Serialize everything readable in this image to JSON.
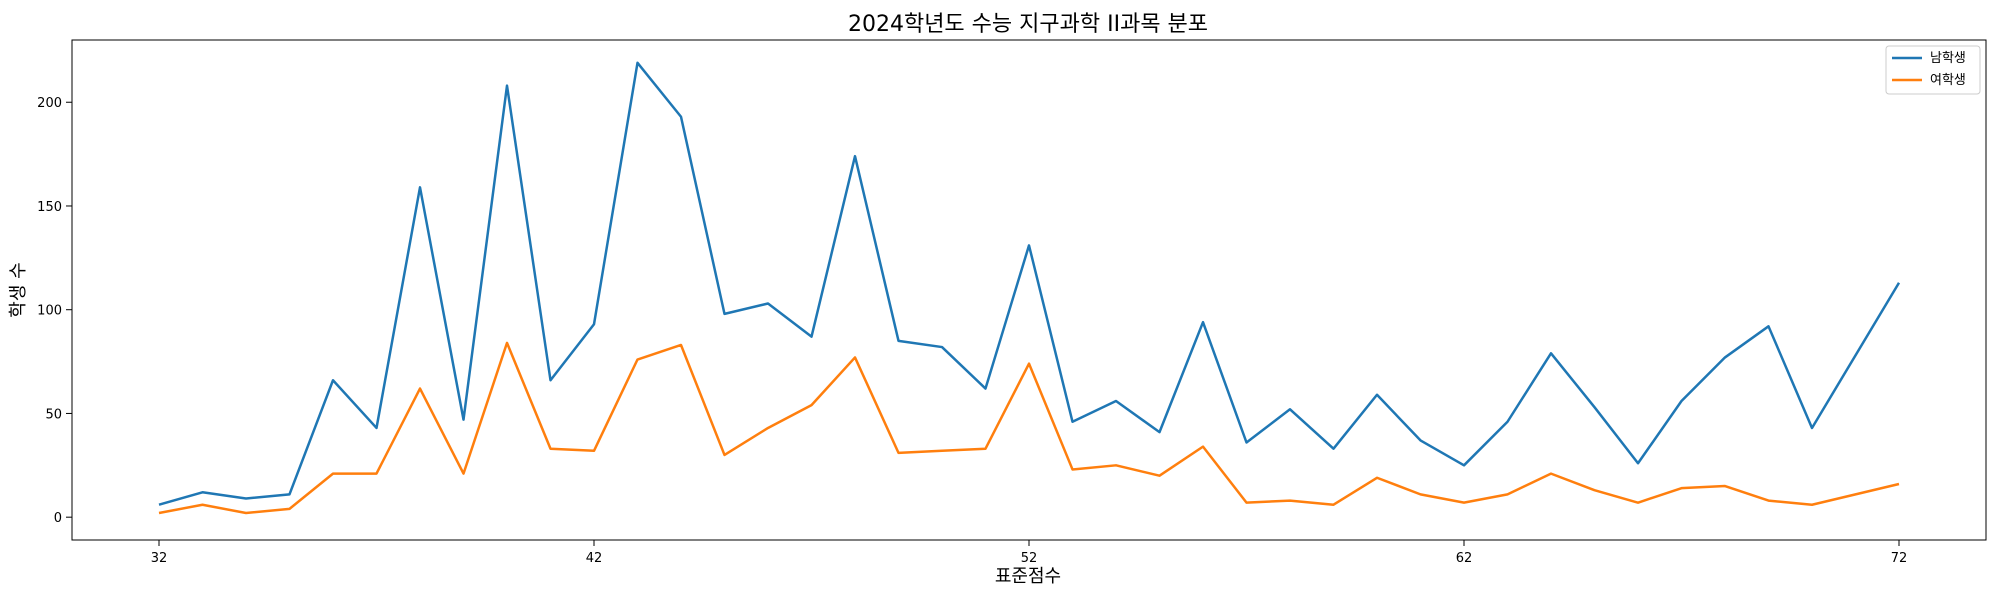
{
  "chart_data": {
    "type": "line",
    "title": "2024학년도 수능 지구과학 II과목 분포",
    "xlabel": "표준점수",
    "ylabel": "학생 수",
    "xlim": [
      30,
      74
    ],
    "ylim": [
      -11,
      230
    ],
    "xticks": [
      32,
      42,
      52,
      62,
      72
    ],
    "yticks": [
      0,
      50,
      100,
      150,
      200
    ],
    "grid": false,
    "legend_position": "top-right",
    "x": [
      32,
      33,
      34,
      35,
      36,
      37,
      38,
      39,
      40,
      41,
      42,
      43,
      44,
      45,
      46,
      47,
      48,
      49,
      50,
      51,
      52,
      53,
      54,
      55,
      56,
      57,
      58,
      59,
      60,
      61,
      62,
      63,
      64,
      65,
      66,
      67,
      68,
      69,
      70,
      71,
      72
    ],
    "series": [
      {
        "name": "남학생",
        "color": "#1f77b4",
        "values": [
          6,
          12,
          9,
          11,
          66,
          43,
          159,
          47,
          208,
          66,
          93,
          219,
          193,
          98,
          103,
          87,
          174,
          85,
          82,
          62,
          131,
          46,
          56,
          41,
          94,
          36,
          52,
          33,
          59,
          37,
          25,
          46,
          79,
          53,
          26,
          56,
          77,
          92,
          43,
          78,
          113
        ]
      },
      {
        "name": "여학생",
        "color": "#ff7f0e",
        "values": [
          2,
          6,
          2,
          4,
          21,
          21,
          62,
          21,
          84,
          33,
          32,
          76,
          83,
          30,
          43,
          54,
          77,
          31,
          32,
          33,
          74,
          23,
          25,
          20,
          34,
          7,
          8,
          6,
          19,
          11,
          7,
          11,
          21,
          13,
          7,
          14,
          15,
          8,
          6,
          11,
          16
        ]
      }
    ]
  }
}
